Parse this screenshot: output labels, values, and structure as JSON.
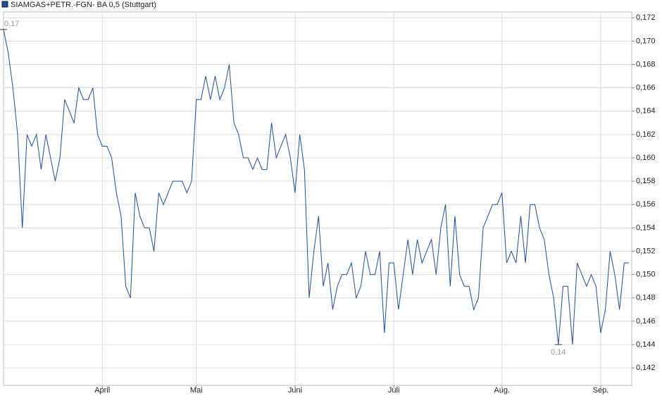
{
  "chart_data": {
    "type": "line",
    "categories": [
      null,
      null,
      null,
      null,
      null,
      null,
      null,
      null,
      null,
      null,
      null,
      null,
      null,
      null,
      null,
      null,
      null,
      null,
      null,
      null,
      null,
      "April",
      null,
      null,
      null,
      null,
      null,
      null,
      null,
      null,
      null,
      null,
      null,
      null,
      null,
      null,
      null,
      null,
      null,
      null,
      null,
      "Mai",
      null,
      null,
      null,
      null,
      null,
      null,
      null,
      null,
      null,
      null,
      null,
      null,
      null,
      null,
      null,
      null,
      null,
      null,
      null,
      null,
      "Juni",
      null,
      null,
      null,
      null,
      null,
      null,
      null,
      null,
      null,
      null,
      null,
      null,
      null,
      null,
      null,
      null,
      null,
      null,
      null,
      null,
      "Juli",
      null,
      null,
      null,
      null,
      null,
      null,
      null,
      null,
      null,
      null,
      null,
      null,
      null,
      null,
      null,
      null,
      null,
      null,
      null,
      null,
      null,
      null,
      "Aug.",
      null,
      null,
      null,
      null,
      null,
      null,
      null,
      null,
      null,
      null,
      null,
      null,
      null,
      null,
      null,
      null,
      null,
      null,
      null,
      null,
      "Sep.",
      null,
      null,
      null,
      null,
      null,
      null
    ],
    "series": [
      {
        "name": "SIAMGAS+PETR.-FGN- BA 0,5 (Stuttgart)",
        "color": "#1f4e9c",
        "values": [
          0.171,
          0.169,
          0.166,
          0.162,
          0.154,
          0.162,
          0.161,
          0.162,
          0.159,
          0.162,
          0.16,
          0.158,
          0.16,
          0.165,
          0.164,
          0.163,
          0.166,
          0.165,
          0.165,
          0.166,
          0.162,
          0.161,
          0.161,
          0.16,
          0.157,
          0.155,
          0.149,
          0.148,
          0.157,
          0.155,
          0.154,
          0.154,
          0.152,
          0.157,
          0.156,
          0.157,
          0.158,
          0.158,
          0.158,
          0.157,
          0.158,
          0.165,
          0.165,
          0.167,
          0.165,
          0.167,
          0.165,
          0.166,
          0.168,
          0.163,
          0.162,
          0.16,
          0.16,
          0.159,
          0.16,
          0.159,
          0.159,
          0.163,
          0.16,
          0.161,
          0.162,
          0.16,
          0.157,
          0.162,
          0.159,
          0.148,
          0.152,
          0.155,
          0.149,
          0.151,
          0.147,
          0.149,
          0.15,
          0.15,
          0.151,
          0.148,
          0.149,
          0.152,
          0.15,
          0.15,
          0.152,
          0.145,
          0.151,
          0.151,
          0.147,
          0.15,
          0.153,
          0.15,
          0.153,
          0.151,
          0.152,
          0.153,
          0.15,
          0.154,
          0.156,
          0.149,
          0.155,
          0.15,
          0.149,
          0.149,
          0.147,
          0.148,
          0.154,
          0.155,
          0.156,
          0.156,
          0.157,
          0.151,
          0.152,
          0.151,
          0.155,
          0.151,
          0.156,
          0.156,
          0.154,
          0.153,
          0.15,
          0.148,
          0.144,
          0.149,
          0.149,
          0.144,
          0.151,
          0.15,
          0.149,
          0.15,
          0.149,
          0.145,
          0.147,
          0.152,
          0.15,
          0.147,
          0.151,
          0.151
        ],
        "value_labels": [
          "0,17",
          null,
          null,
          null,
          null,
          null,
          null,
          null,
          null,
          null,
          null,
          null,
          null,
          null,
          null,
          null,
          null,
          null,
          null,
          null,
          null,
          null,
          null,
          null,
          null,
          null,
          null,
          null,
          null,
          null,
          null,
          null,
          null,
          null,
          null,
          null,
          null,
          null,
          null,
          null,
          null,
          null,
          null,
          null,
          null,
          null,
          null,
          null,
          null,
          null,
          null,
          null,
          null,
          null,
          null,
          null,
          null,
          null,
          null,
          null,
          null,
          null,
          null,
          null,
          null,
          null,
          null,
          null,
          null,
          null,
          null,
          null,
          null,
          null,
          null,
          null,
          null,
          null,
          null,
          null,
          null,
          null,
          null,
          null,
          null,
          null,
          null,
          null,
          null,
          null,
          null,
          null,
          null,
          null,
          null,
          null,
          null,
          null,
          null,
          null,
          null,
          null,
          null,
          null,
          null,
          null,
          null,
          null,
          null,
          null,
          null,
          null,
          null,
          null,
          null,
          null,
          null,
          null,
          "0,14",
          null,
          null,
          null,
          null,
          null,
          null,
          null,
          null,
          null,
          null,
          null,
          null,
          null,
          null,
          null
        ]
      }
    ],
    "ylim": [
      0.1405,
      0.1725
    ],
    "yticks": [
      {
        "value": 0.142,
        "label": "0,142"
      },
      {
        "value": 0.144,
        "label": "0,144"
      },
      {
        "value": 0.146,
        "label": "0,146"
      },
      {
        "value": 0.148,
        "label": "0,148"
      },
      {
        "value": 0.15,
        "label": "0,150"
      },
      {
        "value": 0.152,
        "label": "0,152"
      },
      {
        "value": 0.154,
        "label": "0,154"
      },
      {
        "value": 0.156,
        "label": "0,156"
      },
      {
        "value": 0.158,
        "label": "0,158"
      },
      {
        "value": 0.16,
        "label": "0,160"
      },
      {
        "value": 0.162,
        "label": "0,162"
      },
      {
        "value": 0.164,
        "label": "0,164"
      },
      {
        "value": 0.166,
        "label": "0,166"
      },
      {
        "value": 0.168,
        "label": "0,168"
      },
      {
        "value": 0.17,
        "label": "0,170"
      },
      {
        "value": 0.172,
        "label": "0,172"
      }
    ],
    "grid": true
  }
}
